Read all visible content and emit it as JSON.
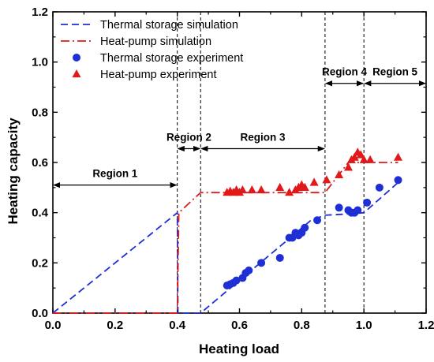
{
  "chart_data": {
    "type": "scatter",
    "xlabel": "Heating load",
    "ylabel": "Heating capacity",
    "xlim": [
      0,
      1.2
    ],
    "ylim": [
      0,
      1.2
    ],
    "xticks": [
      "0.0",
      "0.2",
      "0.4",
      "0.6",
      "0.8",
      "1.0",
      "1.2"
    ],
    "yticks": [
      "0.0",
      "0.2",
      "0.4",
      "0.6",
      "0.8",
      "1.0",
      "1.2"
    ],
    "grid": false,
    "legend_position": "top-left",
    "series": [
      {
        "name": "Thermal storage simulation",
        "kind": "line",
        "style": "dashed",
        "color": "#1f2fd6",
        "x": [
          0.0,
          0.4,
          0.402,
          0.475,
          0.83,
          0.875,
          0.95,
          1.0,
          1.11
        ],
        "y": [
          0.0,
          0.4,
          0.0,
          0.0,
          0.37,
          0.39,
          0.395,
          0.4,
          0.52
        ]
      },
      {
        "name": "Heat-pump simulation",
        "kind": "line",
        "style": "dash-dot",
        "color": "#e01a1a",
        "x": [
          0.0,
          0.4,
          0.405,
          0.475,
          0.875,
          0.95,
          1.0,
          1.11
        ],
        "y": [
          0.0,
          0.0,
          0.4,
          0.48,
          0.48,
          0.6,
          0.6,
          0.6
        ]
      },
      {
        "name": "Thermal storage experiment",
        "kind": "marker",
        "marker": "circle",
        "color": "#1f2fd6",
        "x": [
          0.56,
          0.57,
          0.58,
          0.59,
          0.61,
          0.62,
          0.63,
          0.67,
          0.73,
          0.76,
          0.77,
          0.78,
          0.79,
          0.8,
          0.81,
          0.85,
          0.92,
          0.95,
          0.96,
          0.97,
          0.98,
          1.01,
          1.05,
          1.11
        ],
        "y": [
          0.11,
          0.115,
          0.12,
          0.13,
          0.14,
          0.16,
          0.17,
          0.2,
          0.22,
          0.3,
          0.3,
          0.32,
          0.31,
          0.32,
          0.34,
          0.37,
          0.42,
          0.41,
          0.4,
          0.4,
          0.41,
          0.44,
          0.5,
          0.53
        ]
      },
      {
        "name": "Heat-pump experiment",
        "kind": "marker",
        "marker": "triangle",
        "color": "#e01a1a",
        "x": [
          0.56,
          0.57,
          0.58,
          0.59,
          0.6,
          0.61,
          0.64,
          0.67,
          0.73,
          0.76,
          0.78,
          0.79,
          0.8,
          0.81,
          0.84,
          0.88,
          0.92,
          0.95,
          0.96,
          0.97,
          0.98,
          0.99,
          1.0,
          1.02,
          1.11
        ],
        "y": [
          0.48,
          0.485,
          0.48,
          0.49,
          0.48,
          0.49,
          0.49,
          0.49,
          0.5,
          0.48,
          0.49,
          0.5,
          0.51,
          0.5,
          0.52,
          0.53,
          0.55,
          0.58,
          0.61,
          0.62,
          0.64,
          0.63,
          0.61,
          0.61,
          0.62
        ]
      }
    ],
    "vlines": [
      0.4,
      0.475,
      0.875,
      1.0
    ],
    "regions": [
      {
        "label": "Region 1",
        "x_from": 0.0,
        "x_to": 0.4,
        "y": 0.51
      },
      {
        "label": "Region 2",
        "x_from": 0.4,
        "x_to": 0.475,
        "y": 0.655
      },
      {
        "label": "Region 3",
        "x_from": 0.475,
        "x_to": 0.875,
        "y": 0.655
      },
      {
        "label": "Region 4",
        "x_from": 0.875,
        "x_to": 1.0,
        "y": 0.915
      },
      {
        "label": "Region 5",
        "x_from": 1.0,
        "x_to": 1.2,
        "y": 0.915
      }
    ]
  }
}
